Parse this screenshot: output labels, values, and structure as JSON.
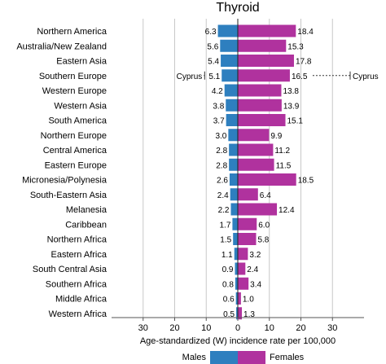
{
  "chart_data": {
    "type": "bar",
    "title": "Thyroid",
    "xlabel": "Age-standardized (W) incidence rate per 100,000",
    "xlim": [
      -40,
      40
    ],
    "x_ticks": [
      -30,
      -20,
      -10,
      0,
      10,
      20,
      30
    ],
    "x_tick_labels": [
      "30",
      "20",
      "10",
      "0",
      "10",
      "20",
      "30"
    ],
    "grid": true,
    "legend_position": "bottom",
    "categories": [
      "Northern America",
      "Australia/New Zealand",
      "Eastern Asia",
      "Southern Europe",
      "Western Europe",
      "Western Asia",
      "South America",
      "Northern Europe",
      "Central America",
      "Eastern Europe",
      "Micronesia/Polynesia",
      "South-Eastern Asia",
      "Melanesia",
      "Caribbean",
      "Northern Africa",
      "Eastern Africa",
      "South Central Asia",
      "Southern Africa",
      "Middle Africa",
      "Western Africa"
    ],
    "series": [
      {
        "name": "Males",
        "color": "#2e7fbf",
        "direction": "left",
        "values": [
          6.3,
          5.6,
          5.4,
          5.1,
          4.2,
          3.8,
          3.7,
          3.0,
          2.8,
          2.8,
          2.6,
          2.4,
          2.2,
          1.7,
          1.5,
          1.1,
          0.9,
          0.8,
          0.6,
          0.5
        ],
        "labels": [
          "6.3",
          "5.6",
          "5.4",
          "5.1",
          "4.2",
          "3.8",
          "3.7",
          "3.0",
          "2.8",
          "2.8",
          "2.6",
          "2.4",
          "2.2",
          "1.7",
          "1.5",
          "1.1",
          "0.9",
          "0.8",
          "0.6",
          "0.5"
        ]
      },
      {
        "name": "Females",
        "color": "#b0329e",
        "direction": "right",
        "values": [
          18.4,
          15.3,
          17.8,
          16.5,
          13.8,
          13.9,
          15.1,
          9.9,
          11.2,
          11.5,
          18.5,
          6.4,
          12.4,
          6.0,
          5.8,
          3.2,
          2.4,
          3.4,
          1.0,
          1.3
        ],
        "labels": [
          "18.4",
          "15.3",
          "17.8",
          "16.5",
          "13.8",
          "13.9",
          "15.1",
          "9.9",
          "11.2",
          "11.5",
          "18.5",
          "6.4",
          "12.4",
          "6.0",
          "5.8",
          "3.2",
          "2.4",
          "3.4",
          "1.0",
          "1.3"
        ]
      }
    ],
    "annotations": [
      {
        "category": "Southern Europe",
        "series": "Males",
        "text": "Cyprus",
        "value": 10.5
      },
      {
        "category": "Southern Europe",
        "series": "Females",
        "text": "Cyprus",
        "value": 40.0
      }
    ]
  }
}
